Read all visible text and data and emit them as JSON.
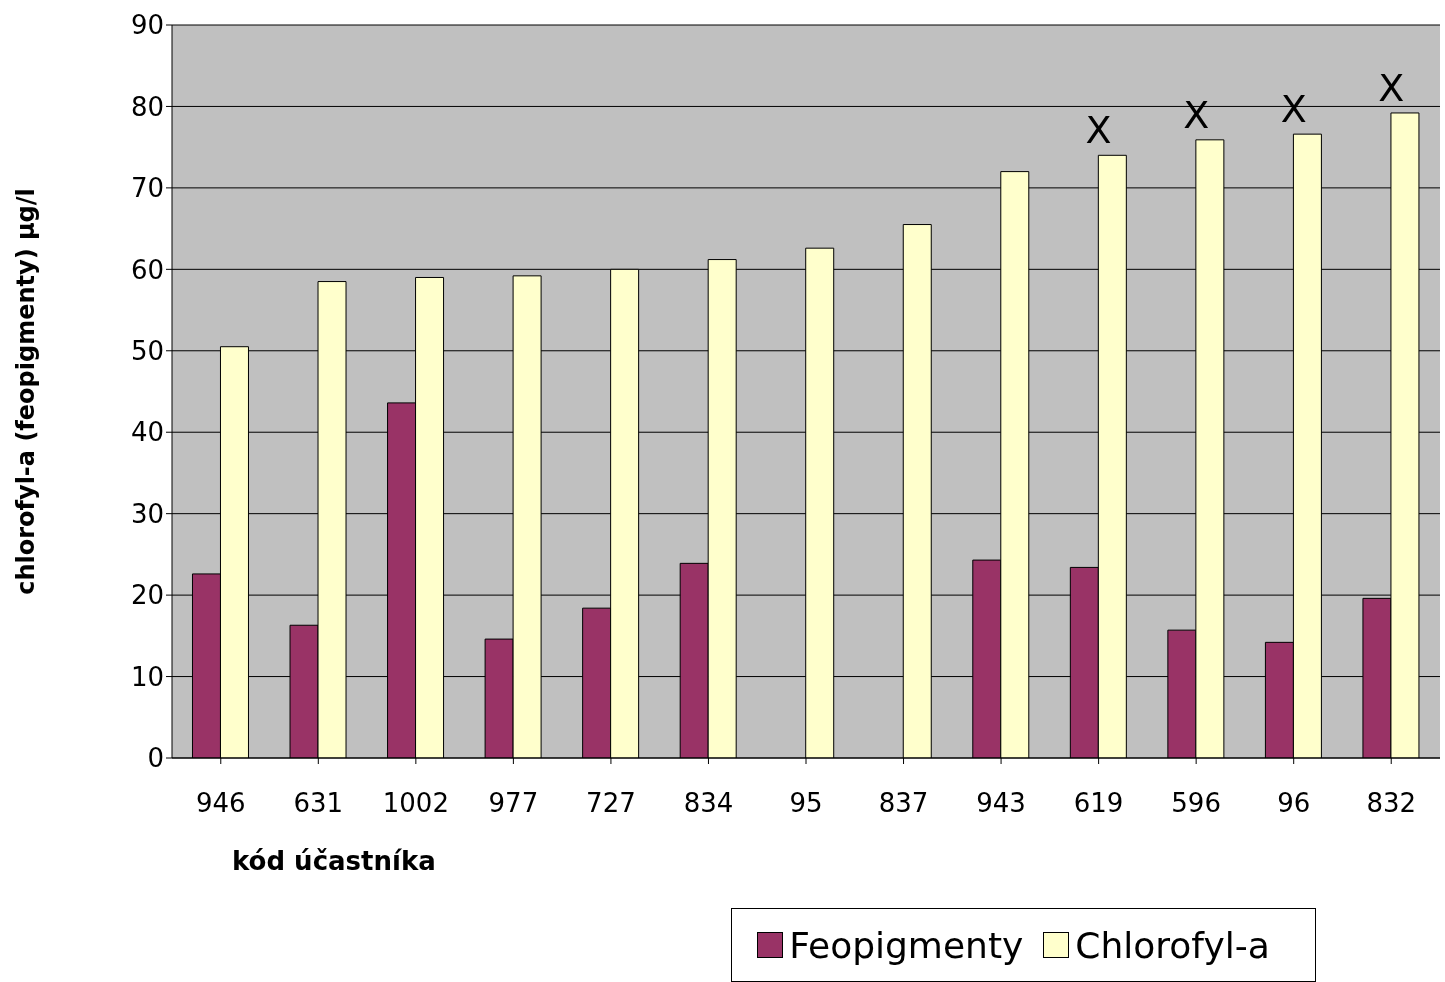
{
  "chart_data": {
    "type": "bar",
    "xlabel": "kód účastníka",
    "ylabel": "chlorofyl-a (feopigmenty) µg/l",
    "categories": [
      "946",
      "631",
      "1002",
      "977",
      "727",
      "834",
      "95",
      "837",
      "943",
      "619",
      "596",
      "96",
      "832"
    ],
    "series": [
      {
        "name": "Feopigmenty",
        "color": "#993366",
        "values": [
          22.6,
          16.3,
          43.6,
          14.6,
          18.4,
          23.9,
          null,
          null,
          24.3,
          23.4,
          15.7,
          14.2,
          19.6
        ]
      },
      {
        "name": "Chlorofyl-a",
        "color": "#ffffcc",
        "values": [
          50.5,
          58.5,
          59.0,
          59.2,
          60.0,
          61.2,
          62.6,
          65.5,
          72.0,
          74.0,
          75.9,
          76.6,
          79.2
        ]
      }
    ],
    "ylim": [
      0,
      90
    ],
    "yticks": [
      0,
      10,
      20,
      30,
      40,
      50,
      60,
      70,
      80,
      90
    ],
    "grid": "y",
    "legend": "bottom right",
    "annotations": [
      {
        "text": "X",
        "x": "619",
        "y": 74.0
      },
      {
        "text": "X",
        "x": "596",
        "y": 75.9
      },
      {
        "text": "X",
        "x": "96",
        "y": 76.6
      },
      {
        "text": "X",
        "x": "832",
        "y": 79.2
      }
    ]
  }
}
